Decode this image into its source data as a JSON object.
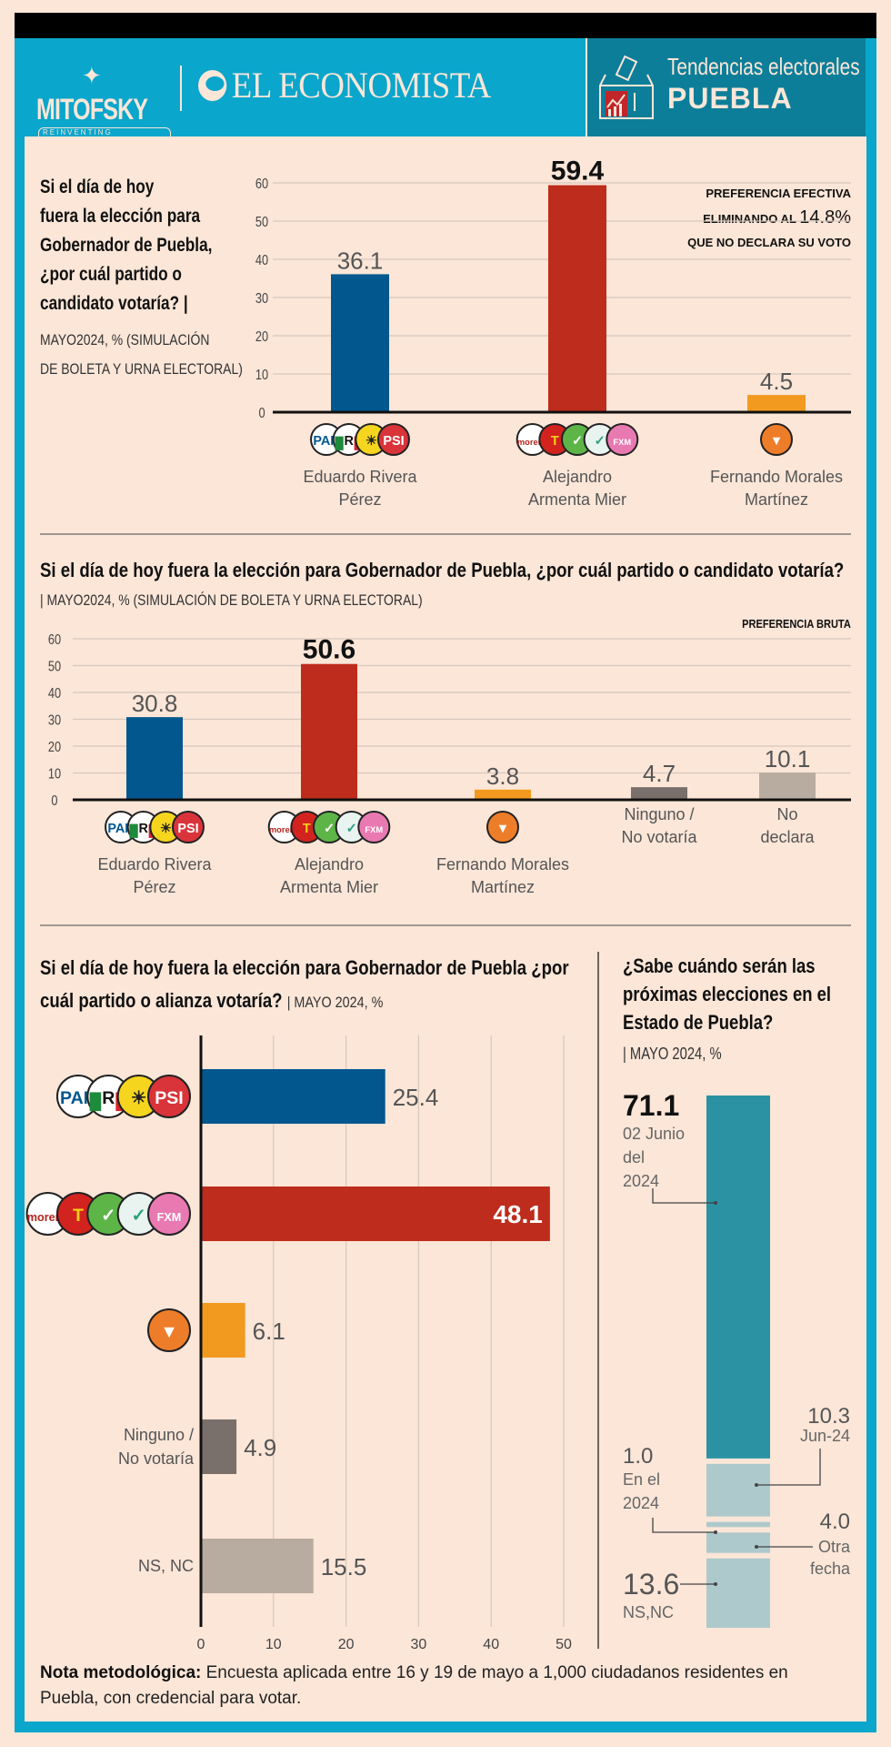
{
  "header": {
    "brand1": "MITOFSKY",
    "brand1_sub": "REINVENTING RESEARCH",
    "brand2": "EL ECONOMISTA",
    "section_line1": "Tendencias electorales",
    "section_line2": "PUEBLA",
    "ballot_icon": "ballot-box-icon"
  },
  "colors": {
    "frame": "#0aa6cc",
    "header_box": "#0d7e99",
    "background": "#fbe6d8",
    "pan_pri_prd_psi": "#03578f",
    "morena": "#bd2c1c",
    "mc": "#f29a1f",
    "ninguno": "#7a706b",
    "no_declara": "#b8ab9f",
    "teal_main": "#2a92a3",
    "teal_light": "#adc9cb"
  },
  "chart1": {
    "title": "Si el día de hoy fuera la elección para Gobernador de Puebla, ¿por cuál partido o candidato votaría? |",
    "title_lines": [
      "Si el día de hoy",
      "fuera la elección para",
      "Gobernador de Puebla,",
      "¿por cuál partido o",
      "candidato votaría? |"
    ],
    "subtitle_lines": [
      "MAYO2024, % (SIMULACIÓN",
      "DE BOLETA Y URNA ELECTORAL)"
    ],
    "annotation_lines": [
      "PREFERENCIA EFECTIVA",
      "ELIMINANDO AL",
      "14.8%",
      "QUE NO DECLARA SU VOTO"
    ]
  },
  "chart2": {
    "title": "Si el día de hoy fuera la elección para Gobernador de Puebla, ¿por cuál partido o candidato votaría?",
    "subtitle": "| MAYO2024, % (SIMULACIÓN DE BOLETA Y URNA ELECTORAL)",
    "annotation": "PREFERENCIA BRUTA"
  },
  "chart3": {
    "title_lines": [
      "Si el día de hoy fuera la elección para Gobernador de Puebla ¿por",
      "cuál partido o alianza votaría?"
    ],
    "subtitle": "| MAYO 2024, %"
  },
  "chart4": {
    "title_lines": [
      "¿Sabe cuándo serán las",
      "próximas elecciones en el",
      "Estado de Puebla?"
    ],
    "subtitle": "| MAYO 2024, %"
  },
  "party_logos": {
    "coalition_pan": [
      "PAN",
      "PRI",
      "PRD",
      "PSI"
    ],
    "coalition_morena": [
      "morena",
      "PT",
      "PVEM",
      "Nueva Alianza",
      "Fuerza por México"
    ],
    "mc": [
      "Movimiento Ciudadano"
    ]
  },
  "note": {
    "label": "Nota metodológica:",
    "text": "Encuesta aplicada entre 16 y 19 de mayo a 1,000 ciudadanos residentes en Puebla, con credencial para votar."
  },
  "chart_data": [
    {
      "type": "bar",
      "title": "Si el día de hoy fuera la elección para Gobernador de Puebla, ¿por cuál partido o candidato votaría? (Preferencia efectiva)",
      "categories": [
        "Eduardo Rivera Pérez",
        "Alejandro Armenta Mier",
        "Fernando Morales Martínez"
      ],
      "category_lines": [
        [
          "Eduardo Rivera",
          "Pérez"
        ],
        [
          "Alejandro",
          "Armenta Mier"
        ],
        [
          "Fernando Morales",
          "Martínez"
        ]
      ],
      "values": [
        36.1,
        59.4,
        4.5
      ],
      "value_labels": [
        "36.1",
        "59.4",
        "4.5"
      ],
      "logos": [
        "coalition_pan",
        "coalition_morena",
        "mc"
      ],
      "colors": [
        "#03578f",
        "#bd2c1c",
        "#f29a1f"
      ],
      "ylim": [
        0,
        60
      ],
      "yticks": [
        "0",
        "10",
        "20",
        "30",
        "40",
        "50",
        "60"
      ],
      "grid": true
    },
    {
      "type": "bar",
      "title": "Si el día de hoy fuera la elección para Gobernador de Puebla, ¿por cuál partido o candidato votaría? (Preferencia bruta)",
      "categories": [
        "Eduardo Rivera Pérez",
        "Alejandro Armenta Mier",
        "Fernando Morales Martínez",
        "Ninguno / No votaría",
        "No declara"
      ],
      "category_lines": [
        [
          "Eduardo Rivera",
          "Pérez"
        ],
        [
          "Alejandro",
          "Armenta Mier"
        ],
        [
          "Fernando Morales",
          "Martínez"
        ],
        [
          "Ninguno /",
          "No votaría"
        ],
        [
          "No",
          "declara"
        ]
      ],
      "values": [
        30.8,
        50.6,
        3.8,
        4.7,
        10.1
      ],
      "value_labels": [
        "30.8",
        "50.6",
        "3.8",
        "4.7",
        "10.1"
      ],
      "logos": [
        "coalition_pan",
        "coalition_morena",
        "mc",
        "",
        ""
      ],
      "colors": [
        "#03578f",
        "#bd2c1c",
        "#f29a1f",
        "#7a706b",
        "#b8ab9f"
      ],
      "ylim": [
        0,
        60
      ],
      "yticks": [
        "0",
        "10",
        "20",
        "30",
        "40",
        "50",
        "60"
      ],
      "grid": true
    },
    {
      "type": "bar",
      "orientation": "horizontal",
      "title": "Si el día de hoy fuera la elección para Gobernador de Puebla ¿por cuál partido o alianza votaría?",
      "categories": [
        "PAN-PRI-PRD-PSI",
        "Morena-PT-PVEM-PANAL-FxM",
        "Movimiento Ciudadano",
        "Ninguno / No votaría",
        "NS, NC"
      ],
      "category_lines": [
        [],
        [],
        [],
        [
          "Ninguno /",
          "No votaría"
        ],
        [
          "NS, NC"
        ]
      ],
      "values": [
        25.4,
        48.1,
        6.1,
        4.9,
        15.5
      ],
      "value_labels": [
        "25.4",
        "48.1",
        "6.1",
        "4.9",
        "15.5"
      ],
      "logos": [
        "coalition_pan",
        "coalition_morena",
        "mc",
        "",
        ""
      ],
      "colors": [
        "#03578f",
        "#bd2c1c",
        "#f29a1f",
        "#7a706b",
        "#b8ab9f"
      ],
      "xlim": [
        0,
        50
      ],
      "xticks": [
        "0",
        "10",
        "20",
        "30",
        "40",
        "50"
      ],
      "grid": true
    },
    {
      "type": "bar",
      "orientation": "stacked-vertical",
      "title": "¿Sabe cuándo serán las próximas elecciones en el Estado de Puebla?",
      "segments": [
        {
          "label": "02 Junio del 2024",
          "label_lines": [
            "02 Junio",
            "del",
            "2024"
          ],
          "value": 71.1,
          "value_label": "71.1",
          "color": "#2a92a3"
        },
        {
          "label": "Jun-24",
          "label_lines": [
            "Jun-24"
          ],
          "value": 10.3,
          "value_label": "10.3",
          "color": "#adc9cb"
        },
        {
          "label": "En el 2024",
          "label_lines": [
            "En el",
            "2024"
          ],
          "value": 1.0,
          "value_label": "1.0",
          "color": "#adc9cb"
        },
        {
          "label": "Otra fecha",
          "label_lines": [
            "Otra",
            "fecha"
          ],
          "value": 4.0,
          "value_label": "4.0",
          "color": "#adc9cb"
        },
        {
          "label": "NS,NC",
          "label_lines": [
            "NS,NC"
          ],
          "value": 13.6,
          "value_label": "13.6",
          "color": "#adc9cb"
        }
      ]
    }
  ]
}
